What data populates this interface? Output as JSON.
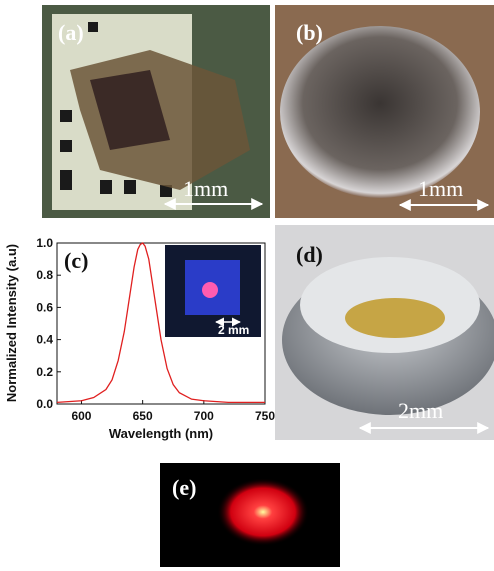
{
  "panels": {
    "a": {
      "label": "(a)",
      "scale": "1mm"
    },
    "b": {
      "label": "(b)",
      "scale": "1mm"
    },
    "d": {
      "label": "(d)",
      "scale": "2mm"
    },
    "e": {
      "label": "(e)"
    }
  },
  "chart_data": {
    "type": "line",
    "label": "(c)",
    "inset_scale": "2 mm",
    "x_label": "Wavelength (nm)",
    "y_label": "Normalized Intensity (a.u)",
    "xlim": [
      580,
      750
    ],
    "ylim": [
      0,
      1.0
    ],
    "xticks": [
      600,
      650,
      700,
      750
    ],
    "yticks": [
      {
        "value": 0,
        "label": "0.0"
      },
      0.2,
      0.4,
      0.6,
      0.8,
      {
        "value": 1,
        "label": "1.0"
      }
    ],
    "series": [
      {
        "color": "#e02020",
        "x": [
          580,
          600,
          610,
          620,
          625,
          630,
          635,
          640,
          643,
          646,
          648,
          650,
          652,
          655,
          660,
          665,
          670,
          675,
          680,
          690,
          700,
          720,
          750
        ],
        "values": [
          0.01,
          0.02,
          0.04,
          0.09,
          0.15,
          0.27,
          0.45,
          0.7,
          0.85,
          0.96,
          0.99,
          1.0,
          0.98,
          0.9,
          0.65,
          0.4,
          0.22,
          0.12,
          0.07,
          0.03,
          0.02,
          0.01,
          0.01
        ]
      }
    ]
  }
}
